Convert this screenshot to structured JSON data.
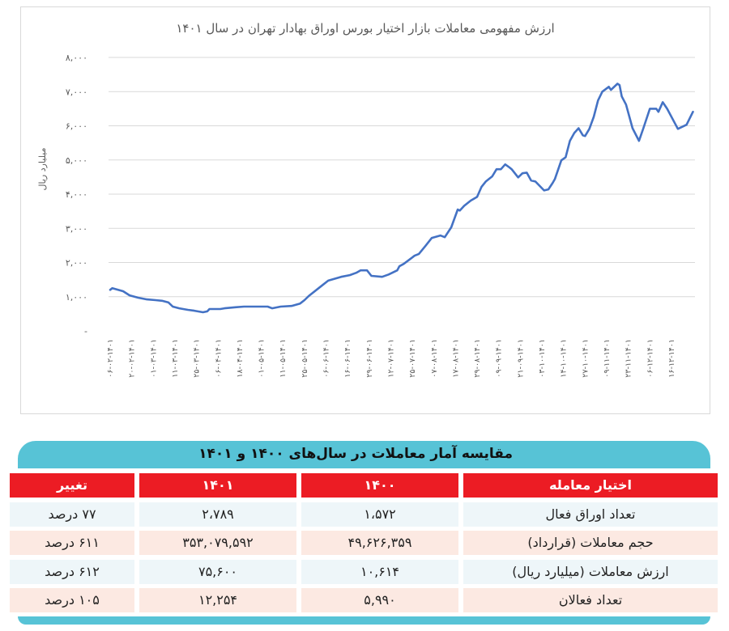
{
  "chart_data": {
    "type": "line",
    "title": "ارزش مفهومی معاملات بازار اختیار بورس اوراق بهادار تهران در سال ۱۴۰۱",
    "ylabel": "میلیارد ریال",
    "xlabel": "",
    "ylim": [
      0,
      8000
    ],
    "grid": true,
    "yticks": [
      0,
      1000,
      2000,
      3000,
      4000,
      5000,
      6000,
      7000,
      8000
    ],
    "ytick_labels": [
      "-",
      "۱,۰۰۰",
      "۲,۰۰۰",
      "۳,۰۰۰",
      "۴,۰۰۰",
      "۵,۰۰۰",
      "۶,۰۰۰",
      "۷,۰۰۰",
      "۸,۰۰۰"
    ],
    "categories": [
      "۰۶-۰۲-۱۴۰۱",
      "۲۰-۰۲-۱۴۰۱",
      "۰۱-۰۳-۱۴۰۱",
      "۱۱-۰۳-۱۴۰۱",
      "۲۵-۰۳-۱۴۰۱",
      "۰۶-۰۴-۱۴۰۱",
      "۱۸-۰۴-۱۴۰۱",
      "۰۱-۰۵-۱۴۰۱",
      "۱۱-۰۵-۱۴۰۱",
      "۲۵-۰۵-۱۴۰۱",
      "۰۶-۰۶-۱۴۰۱",
      "۱۶-۰۶-۱۴۰۱",
      "۲۹-۰۶-۱۴۰۱",
      "۱۲-۰۷-۱۴۰۱",
      "۲۵-۰۷-۱۴۰۱",
      "۰۷-۰۸-۱۴۰۱",
      "۱۷-۰۸-۱۴۰۱",
      "۲۹-۰۸-۱۴۰۱",
      "۰۹-۰۹-۱۴۰۱",
      "۲۱-۰۹-۱۴۰۱",
      "۰۳-۱۰-۱۴۰۱",
      "۱۴-۱۰-۱۴۰۱",
      "۲۷-۱۰-۱۴۰۱",
      "۰۹-۱۱-۱۴۰۱",
      "۲۳-۱۱-۱۴۰۱",
      "۰۶-۱۲-۱۴۰۱",
      "۱۶-۱۲-۱۴۰۱"
    ],
    "series": [
      {
        "color": "#4472c4",
        "points": [
          [
            0,
            1200
          ],
          [
            0.1,
            1250
          ],
          [
            0.6,
            1160
          ],
          [
            0.9,
            1040
          ],
          [
            1.3,
            970
          ],
          [
            1.7,
            920
          ],
          [
            2.1,
            900
          ],
          [
            2.4,
            880
          ],
          [
            2.7,
            830
          ],
          [
            2.9,
            710
          ],
          [
            3.2,
            660
          ],
          [
            3.6,
            615
          ],
          [
            3.9,
            590
          ],
          [
            4.3,
            545
          ],
          [
            4.5,
            570
          ],
          [
            4.6,
            640
          ],
          [
            5.1,
            640
          ],
          [
            5.3,
            660
          ],
          [
            5.8,
            690
          ],
          [
            6.2,
            710
          ],
          [
            6.6,
            710
          ],
          [
            6.9,
            710
          ],
          [
            7.3,
            710
          ],
          [
            7.5,
            660
          ],
          [
            7.9,
            710
          ],
          [
            8.4,
            730
          ],
          [
            8.8,
            800
          ],
          [
            9.0,
            900
          ],
          [
            9.2,
            1020
          ],
          [
            9.8,
            1320
          ],
          [
            10.1,
            1470
          ],
          [
            10.7,
            1580
          ],
          [
            11.1,
            1630
          ],
          [
            11.4,
            1700
          ],
          [
            11.6,
            1770
          ],
          [
            11.9,
            1770
          ],
          [
            12.1,
            1610
          ],
          [
            12.6,
            1580
          ],
          [
            12.9,
            1650
          ],
          [
            13.3,
            1770
          ],
          [
            13.4,
            1890
          ],
          [
            13.6,
            1960
          ],
          [
            14.1,
            2200
          ],
          [
            14.3,
            2250
          ],
          [
            14.6,
            2480
          ],
          [
            14.9,
            2720
          ],
          [
            15.3,
            2790
          ],
          [
            15.5,
            2740
          ],
          [
            15.8,
            3030
          ],
          [
            16.1,
            3550
          ],
          [
            16.2,
            3520
          ],
          [
            16.4,
            3660
          ],
          [
            16.7,
            3810
          ],
          [
            17.0,
            3920
          ],
          [
            17.2,
            4210
          ],
          [
            17.4,
            4370
          ],
          [
            17.7,
            4520
          ],
          [
            17.9,
            4730
          ],
          [
            18.1,
            4730
          ],
          [
            18.3,
            4870
          ],
          [
            18.5,
            4780
          ],
          [
            18.6,
            4730
          ],
          [
            18.9,
            4490
          ],
          [
            19.1,
            4610
          ],
          [
            19.3,
            4630
          ],
          [
            19.5,
            4400
          ],
          [
            19.7,
            4370
          ],
          [
            20.1,
            4110
          ],
          [
            20.3,
            4140
          ],
          [
            20.5,
            4330
          ],
          [
            20.6,
            4440
          ],
          [
            20.9,
            4990
          ],
          [
            21.1,
            5080
          ],
          [
            21.3,
            5560
          ],
          [
            21.5,
            5790
          ],
          [
            21.7,
            5930
          ],
          [
            21.9,
            5720
          ],
          [
            22.0,
            5700
          ],
          [
            22.2,
            5910
          ],
          [
            22.4,
            6260
          ],
          [
            22.6,
            6740
          ],
          [
            22.8,
            7000
          ],
          [
            23.1,
            7140
          ],
          [
            23.2,
            7050
          ],
          [
            23.5,
            7230
          ],
          [
            23.6,
            7190
          ],
          [
            23.7,
            6860
          ],
          [
            23.9,
            6620
          ],
          [
            24.2,
            5930
          ],
          [
            24.5,
            5560
          ],
          [
            24.7,
            5930
          ],
          [
            25.0,
            6500
          ],
          [
            25.3,
            6500
          ],
          [
            25.4,
            6410
          ],
          [
            25.6,
            6690
          ],
          [
            25.8,
            6500
          ],
          [
            26.3,
            5910
          ],
          [
            26.7,
            6030
          ],
          [
            27.0,
            6410
          ]
        ]
      }
    ]
  },
  "table": {
    "title": "مقایسه آمار معاملات در سال‌های ۱۴۰۰ و ۱۴۰۱",
    "headers": [
      "اختیار معامله",
      "۱۴۰۰",
      "۱۴۰۱",
      "تغییر"
    ],
    "rows": [
      [
        "تعداد اوراق فعال",
        "۱،۵۷۲",
        "۲،۷۸۹",
        "۷۷ درصد"
      ],
      [
        "حجم معاملات (قرارداد)",
        "۴۹,۶۲۶,۳۵۹",
        "۳۵۳,۰۷۹,۵۹۲",
        "۶۱۱ درصد"
      ],
      [
        "ارزش معاملات (میلیارد ریال)",
        "۱۰,۶۱۴",
        "۷۵,۶۰۰",
        "۶۱۲ درصد"
      ],
      [
        "تعداد فعالان",
        "۵,۹۹۰",
        "۱۲,۲۵۴",
        "۱۰۵ درصد"
      ]
    ],
    "colors": {
      "header": "#ec1c24",
      "title_bar": "#57c3d6",
      "row_a": "#eef6f9",
      "row_b": "#fce9e2"
    }
  }
}
